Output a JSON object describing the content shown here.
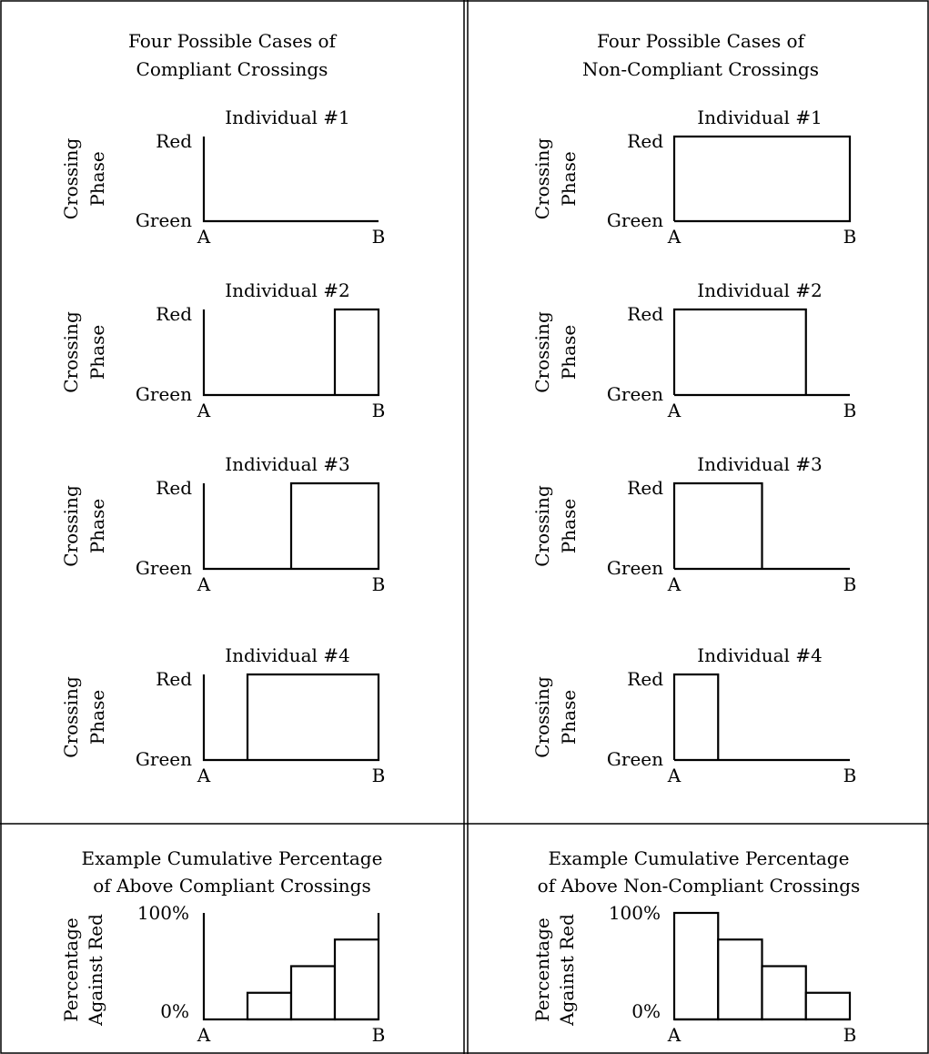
{
  "labels": {
    "red": "Red",
    "green": "Green",
    "a": "A",
    "b": "B",
    "pct_high": "100%",
    "pct_low": "0%",
    "ylabel_line1": "Crossing",
    "ylabel_line2": "Phase",
    "pct_ylabel_line1": "Percentage",
    "pct_ylabel_line2": "Against Red"
  },
  "compliant": {
    "title_line1": "Four Possible Cases of",
    "title_line2": "Compliant Crossings",
    "individuals": [
      {
        "label": "Individual #1",
        "red_start": 1.0,
        "red_end": 1.0
      },
      {
        "label": "Individual #2",
        "red_start": 0.75,
        "red_end": 1.0
      },
      {
        "label": "Individual #3",
        "red_start": 0.5,
        "red_end": 1.0
      },
      {
        "label": "Individual #4",
        "red_start": 0.25,
        "red_end": 1.0
      }
    ],
    "cumulative": {
      "title_line1": "Example Cumulative Percentage",
      "title_line2": "of Above Compliant Crossings",
      "values": [
        0,
        25,
        50,
        75
      ]
    }
  },
  "noncompliant": {
    "title_line1": "Four Possible Cases of",
    "title_line2": "Non-Compliant Crossings",
    "individuals": [
      {
        "label": "Individual #1",
        "red_start": 0.0,
        "red_end": 1.0
      },
      {
        "label": "Individual #2",
        "red_start": 0.0,
        "red_end": 0.75
      },
      {
        "label": "Individual #3",
        "red_start": 0.0,
        "red_end": 0.5
      },
      {
        "label": "Individual #4",
        "red_start": 0.0,
        "red_end": 0.25
      }
    ],
    "cumulative": {
      "title_line1": "Example Cumulative Percentage",
      "title_line2": "of Above Non-Compliant Crossings",
      "values": [
        100,
        75,
        50,
        25
      ]
    }
  }
}
